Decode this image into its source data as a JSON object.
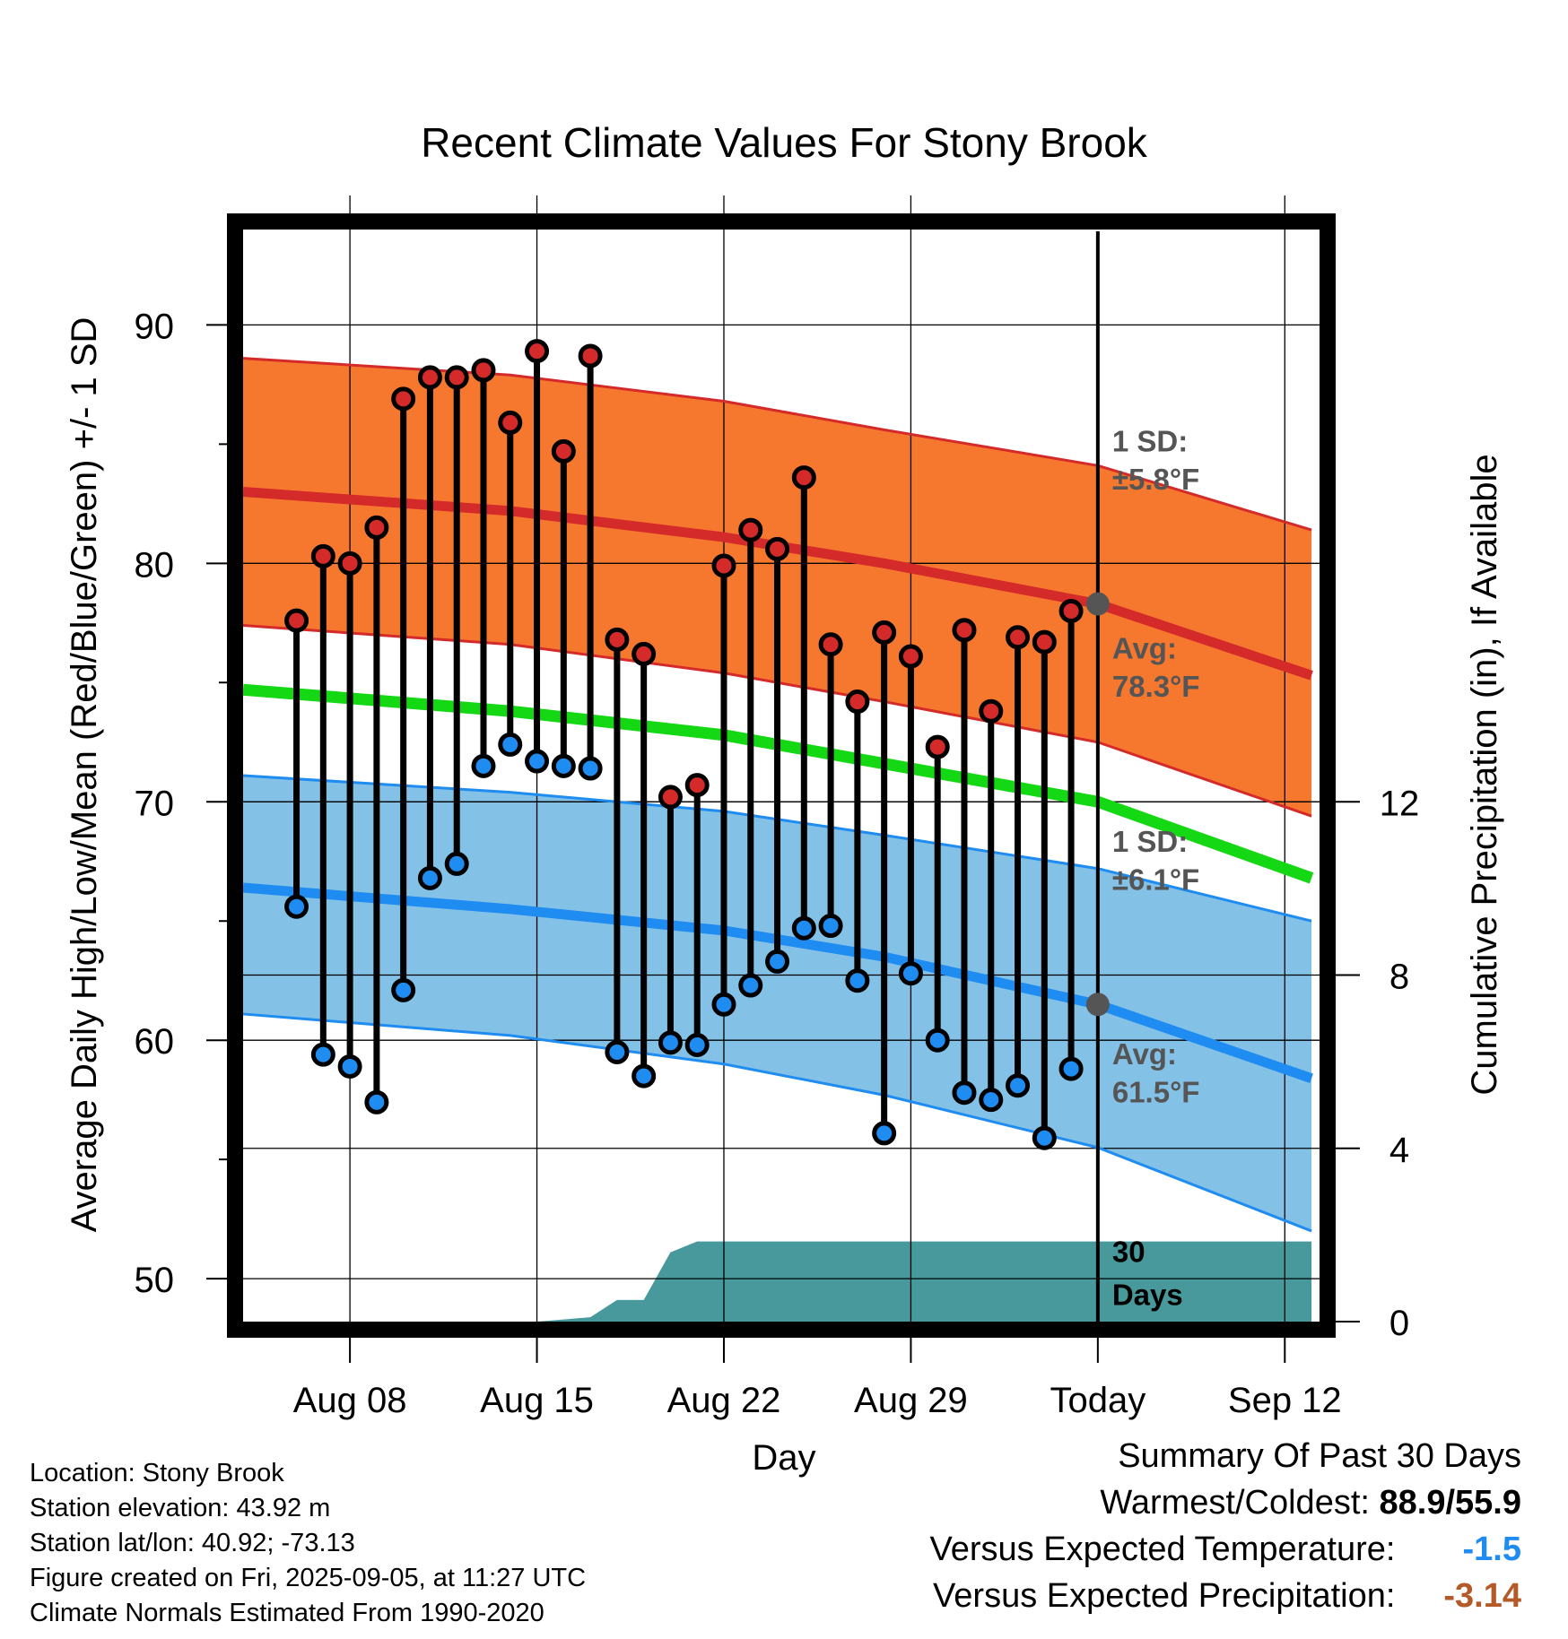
{
  "chart_data": {
    "type": "line",
    "title": "Recent Climate Values For Stony Brook",
    "xlabel": "Day",
    "ylabel": "Average Daily High/Low/Mean (Red/Blue/Green) +/- 1 SD",
    "y2label": "Cumulative Precipitation (in), If Available",
    "xlim": [
      "Aug 04",
      "Sep 14"
    ],
    "ylim": [
      48.2,
      94
    ],
    "y2lim": [
      0,
      28
    ],
    "x_ticks": [
      {
        "label": "Aug 08",
        "day": 8
      },
      {
        "label": "Aug 15",
        "day": 15
      },
      {
        "label": "Aug 22",
        "day": 22
      },
      {
        "label": "Aug 29",
        "day": 29
      },
      {
        "label": "Today",
        "day": 36
      },
      {
        "label": "Sep 12",
        "day": 43
      }
    ],
    "y_ticks": [
      50,
      60,
      70,
      80,
      90
    ],
    "y2_ticks": [
      0,
      4,
      8,
      12
    ],
    "grid": true,
    "days": [
      6,
      7,
      8,
      9,
      10,
      11,
      12,
      13,
      14,
      15,
      16,
      17,
      18,
      19,
      20,
      21,
      22,
      23,
      24,
      25,
      26,
      27,
      28,
      29,
      30,
      31,
      32,
      33,
      34,
      35
    ],
    "daily_high": [
      77.6,
      80.3,
      80.0,
      81.5,
      86.9,
      87.8,
      87.8,
      88.1,
      85.9,
      88.9,
      84.7,
      88.7,
      76.8,
      76.2,
      70.2,
      70.7,
      79.9,
      81.4,
      80.6,
      83.6,
      76.6,
      74.2,
      77.1,
      76.1,
      72.3,
      77.2,
      73.8,
      76.9,
      76.7,
      78.0
    ],
    "daily_low": [
      65.6,
      59.4,
      58.9,
      57.4,
      62.1,
      66.8,
      67.4,
      71.5,
      72.4,
      71.7,
      71.5,
      71.4,
      59.5,
      58.5,
      59.9,
      59.8,
      61.5,
      62.3,
      63.3,
      64.7,
      64.8,
      62.5,
      56.1,
      62.8,
      60.0,
      57.8,
      57.5,
      58.1,
      55.9,
      58.8
    ],
    "normal_days": [
      4,
      14,
      22,
      28,
      36,
      44
    ],
    "normal_high_avg": [
      83.0,
      82.2,
      81.1,
      80.0,
      78.3,
      75.3
    ],
    "normal_high_upper": [
      88.6,
      87.9,
      86.8,
      85.6,
      84.1,
      81.4
    ],
    "normal_high_lower": [
      77.4,
      76.6,
      75.4,
      74.2,
      72.5,
      69.4
    ],
    "normal_mean": [
      74.7,
      73.8,
      72.8,
      71.6,
      70.0,
      66.8
    ],
    "normal_low_avg": [
      66.4,
      65.5,
      64.6,
      63.5,
      61.5,
      58.4
    ],
    "normal_low_upper": [
      71.1,
      70.4,
      69.6,
      68.6,
      67.2,
      65.0
    ],
    "normal_low_lower": [
      61.1,
      60.2,
      59.0,
      57.7,
      55.5,
      52.0
    ],
    "precip_days": [
      4,
      15,
      17,
      18,
      19,
      20,
      21,
      44
    ],
    "precip_cumulative": [
      0,
      0,
      0.1,
      0.5,
      0.5,
      1.6,
      1.85,
      1.85
    ],
    "colors": {
      "high_band": "#F5782E",
      "high_line": "#D42A2A",
      "low_band": "#84C1E6",
      "low_line": "#1E8CF0",
      "mean_line": "#14D814",
      "precip": "#48999C",
      "high_marker": "#D42A2A",
      "low_marker": "#1E8CF0",
      "today_marker": "#555555",
      "warm_value": "#1E8CF0",
      "precip_value": "#B35A28"
    },
    "annotations": {
      "high_sd_label": "1 SD:",
      "high_sd_value": "±5.8°F",
      "high_avg_label": "Avg:",
      "high_avg_value": "78.3°F",
      "low_sd_label": "1 SD:",
      "low_sd_value": "±6.1°F",
      "low_avg_label": "Avg:",
      "low_avg_value": "61.5°F",
      "precip_days_1": "30",
      "precip_days_2": "Days"
    },
    "today_day": 36,
    "today_high_avg": 78.3,
    "today_low_avg": 61.5
  },
  "info": {
    "location": "Location: Stony Brook",
    "elevation": "Station elevation: 43.92 m",
    "latlon": "Station lat/lon: 40.92; -73.13",
    "created": "Figure created on Fri, 2025-09-05, at 11:27 UTC",
    "normals": "Climate Normals Estimated From 1990-2020"
  },
  "summary": {
    "title": "Summary Of Past 30 Days",
    "warmest_label": "Warmest/Coldest:",
    "warmest_value": "88.9/55.9",
    "temp_label": "Versus Expected Temperature:",
    "temp_value": "-1.5",
    "precip_label": "Versus Expected Precipitation:",
    "precip_value": "-3.14"
  }
}
